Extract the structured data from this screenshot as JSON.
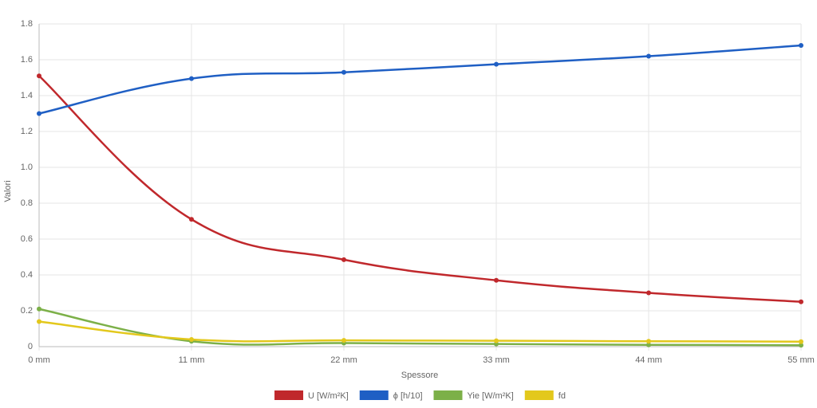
{
  "chart_data": {
    "type": "line",
    "x_label": "Spessore",
    "y_label": "Valori",
    "categories": [
      "0 mm",
      "11 mm",
      "22 mm",
      "33 mm",
      "44 mm",
      "55 mm"
    ],
    "series": [
      {
        "name": "U [W/m²K]",
        "color": "#c0282c",
        "values": [
          1.51,
          0.71,
          0.485,
          0.37,
          0.3,
          0.25
        ]
      },
      {
        "name": "ϕ [h/10]",
        "color": "#1f5fc4",
        "values": [
          1.3,
          1.495,
          1.53,
          1.575,
          1.62,
          1.68
        ]
      },
      {
        "name": "Yie [W/m²K]",
        "color": "#7cb048",
        "values": [
          0.21,
          0.03,
          0.02,
          0.015,
          0.01,
          0.008
        ]
      },
      {
        "name": "fd",
        "color": "#e3c81c",
        "values": [
          0.14,
          0.04,
          0.035,
          0.033,
          0.03,
          0.028
        ]
      }
    ],
    "ylim": [
      0,
      1.8
    ],
    "yticks": [
      0,
      0.2,
      0.4,
      0.6,
      0.8,
      {
        "value": 1,
        "label": "1.0"
      },
      1.2,
      1.4,
      1.6,
      1.8
    ],
    "grid": true,
    "legend": "bottom"
  }
}
